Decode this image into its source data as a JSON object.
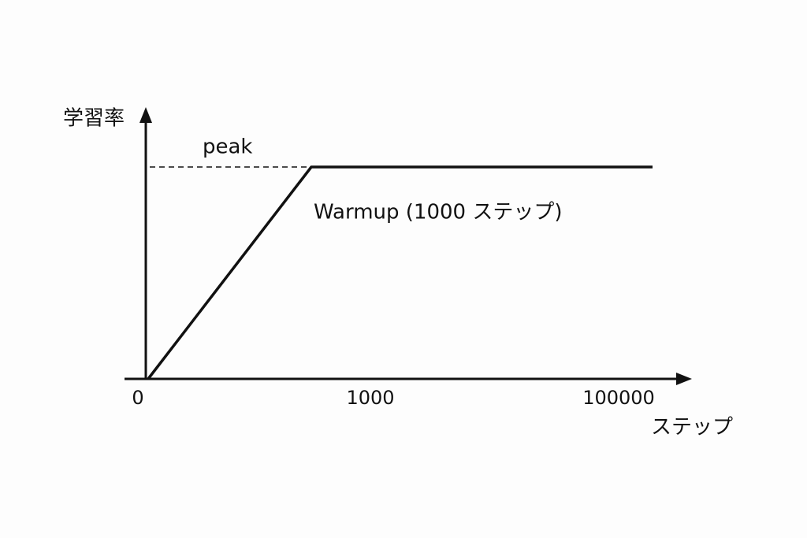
{
  "y_axis_label": "学習率",
  "x_axis_label": "ステップ",
  "peak_label": "peak",
  "annotation": "Warmup (1000 ステップ)",
  "x_tick_labels": [
    "0",
    "1000",
    "100000"
  ]
}
